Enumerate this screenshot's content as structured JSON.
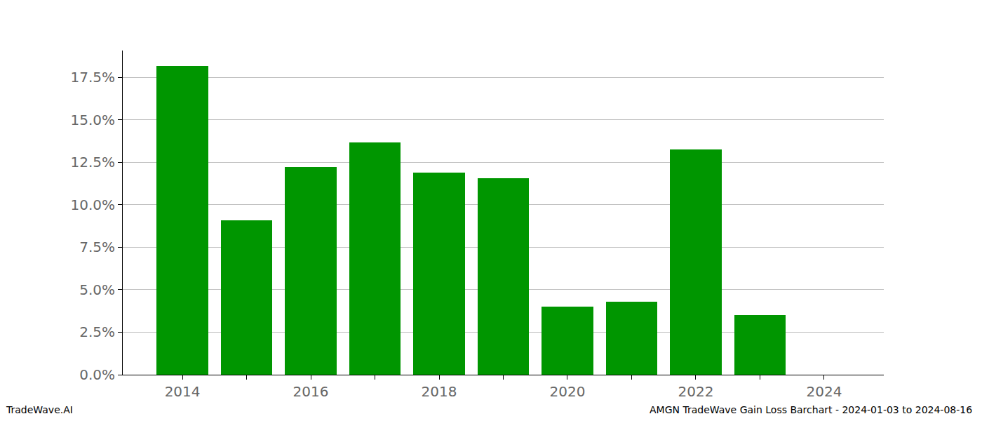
{
  "chart_data": {
    "type": "bar",
    "title": "AMGN TradeWave Gain Loss Barchart - 2024-01-03 to 2024-08-16",
    "source": "TradeWave.AI",
    "x": [
      2014,
      2015,
      2016,
      2017,
      2018,
      2019,
      2020,
      2021,
      2022,
      2023
    ],
    "values": [
      18.16,
      9.08,
      12.22,
      13.66,
      11.89,
      11.56,
      4.0,
      4.29,
      13.25,
      3.51
    ],
    "color": "#009600",
    "xlim": [
      2013.07,
      2024.93
    ],
    "xticks": [
      2014,
      2016,
      2018,
      2020,
      2022,
      2024
    ],
    "ylim": [
      0,
      19.07
    ],
    "yticks": [
      {
        "value": 0,
        "label": "0.0%"
      },
      {
        "value": 2.5,
        "label": "2.5%"
      },
      {
        "value": 5,
        "label": "5.0%"
      },
      {
        "value": 7.5,
        "label": "7.5%"
      },
      {
        "value": 10,
        "label": "10.0%"
      },
      {
        "value": 12.5,
        "label": "12.5%"
      },
      {
        "value": 15,
        "label": "15.0%"
      },
      {
        "value": 17.5,
        "label": "17.5%"
      }
    ],
    "grid": true
  }
}
